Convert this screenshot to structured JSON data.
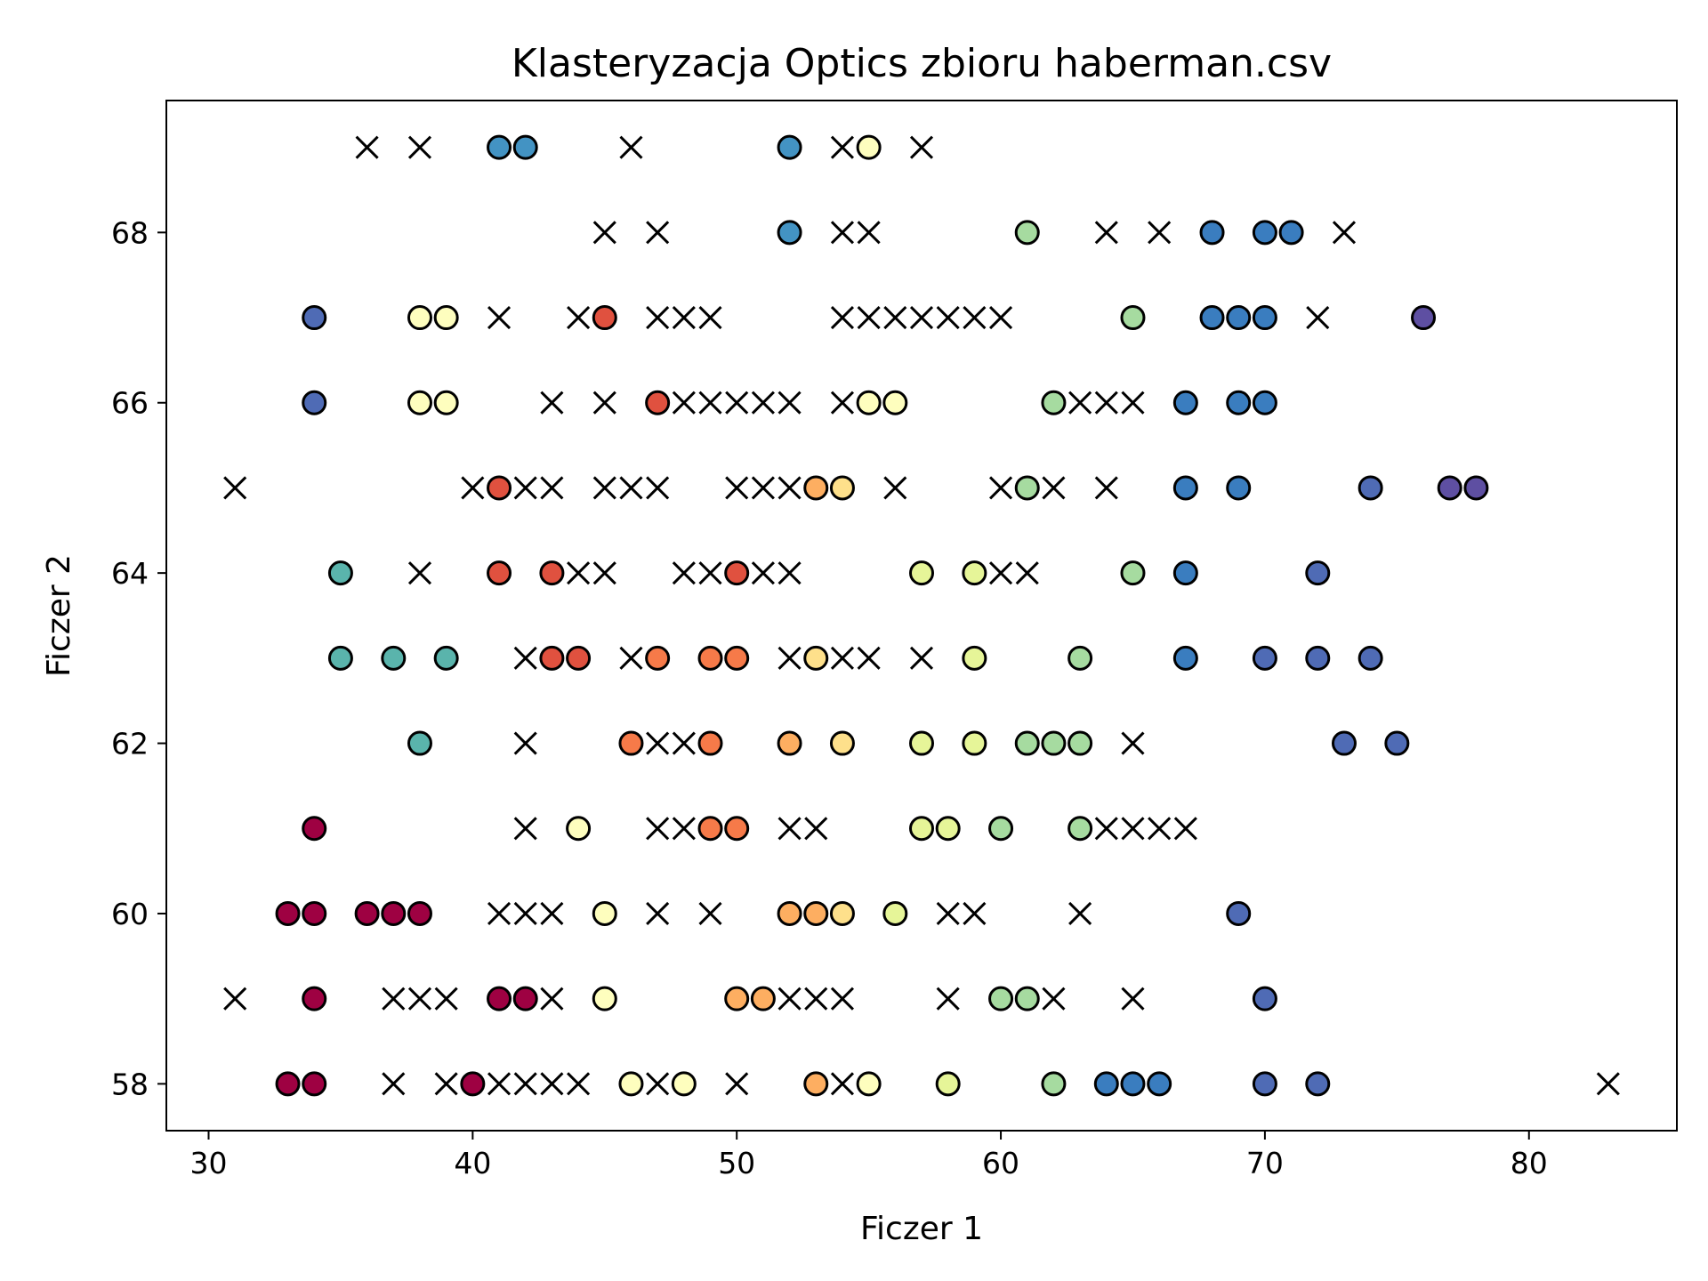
{
  "chart_data": {
    "type": "scatter",
    "title": "Klasteryzacja Optics zbioru haberman.csv",
    "xlabel": "Ficzer 1",
    "ylabel": "Ficzer 2",
    "xlim": [
      28.4,
      85.6
    ],
    "ylim": [
      57.45,
      69.55
    ],
    "xticks": [
      "30",
      "40",
      "50",
      "60",
      "70",
      "80"
    ],
    "yticks": [
      "58",
      "60",
      "62",
      "64",
      "66",
      "68"
    ],
    "grid": false,
    "legend": "none",
    "noise_marker": "x",
    "noise": [
      [
        36,
        69
      ],
      [
        38,
        69
      ],
      [
        46,
        69
      ],
      [
        54,
        69
      ],
      [
        57,
        69
      ],
      [
        45,
        68
      ],
      [
        47,
        68
      ],
      [
        54,
        68
      ],
      [
        55,
        68
      ],
      [
        64,
        68
      ],
      [
        66,
        68
      ],
      [
        73,
        68
      ],
      [
        41,
        67
      ],
      [
        44,
        67
      ],
      [
        47,
        67
      ],
      [
        48,
        67
      ],
      [
        49,
        67
      ],
      [
        54,
        67
      ],
      [
        55,
        67
      ],
      [
        56,
        67
      ],
      [
        57,
        67
      ],
      [
        58,
        67
      ],
      [
        59,
        67
      ],
      [
        60,
        67
      ],
      [
        72,
        67
      ],
      [
        43,
        66
      ],
      [
        45,
        66
      ],
      [
        48,
        66
      ],
      [
        49,
        66
      ],
      [
        50,
        66
      ],
      [
        51,
        66
      ],
      [
        52,
        66
      ],
      [
        54,
        66
      ],
      [
        63,
        66
      ],
      [
        64,
        66
      ],
      [
        65,
        66
      ],
      [
        31,
        65
      ],
      [
        40,
        65
      ],
      [
        42,
        65
      ],
      [
        43,
        65
      ],
      [
        45,
        65
      ],
      [
        46,
        65
      ],
      [
        47,
        65
      ],
      [
        50,
        65
      ],
      [
        51,
        65
      ],
      [
        52,
        65
      ],
      [
        56,
        65
      ],
      [
        60,
        65
      ],
      [
        62,
        65
      ],
      [
        64,
        65
      ],
      [
        38,
        64
      ],
      [
        44,
        64
      ],
      [
        45,
        64
      ],
      [
        48,
        64
      ],
      [
        49,
        64
      ],
      [
        51,
        64
      ],
      [
        52,
        64
      ],
      [
        60,
        64
      ],
      [
        61,
        64
      ],
      [
        42,
        63
      ],
      [
        46,
        63
      ],
      [
        52,
        63
      ],
      [
        54,
        63
      ],
      [
        55,
        63
      ],
      [
        57,
        63
      ],
      [
        42,
        62
      ],
      [
        47,
        62
      ],
      [
        48,
        62
      ],
      [
        65,
        62
      ],
      [
        42,
        61
      ],
      [
        47,
        61
      ],
      [
        48,
        61
      ],
      [
        52,
        61
      ],
      [
        53,
        61
      ],
      [
        64,
        61
      ],
      [
        65,
        61
      ],
      [
        66,
        61
      ],
      [
        67,
        61
      ],
      [
        41,
        60
      ],
      [
        42,
        60
      ],
      [
        43,
        60
      ],
      [
        47,
        60
      ],
      [
        49,
        60
      ],
      [
        58,
        60
      ],
      [
        59,
        60
      ],
      [
        63,
        60
      ],
      [
        31,
        59
      ],
      [
        37,
        59
      ],
      [
        38,
        59
      ],
      [
        39,
        59
      ],
      [
        43,
        59
      ],
      [
        52,
        59
      ],
      [
        53,
        59
      ],
      [
        54,
        59
      ],
      [
        58,
        59
      ],
      [
        62,
        59
      ],
      [
        65,
        59
      ],
      [
        37,
        58
      ],
      [
        39,
        58
      ],
      [
        41,
        58
      ],
      [
        42,
        58
      ],
      [
        43,
        58
      ],
      [
        44,
        58
      ],
      [
        47,
        58
      ],
      [
        50,
        58
      ],
      [
        54,
        58
      ],
      [
        83,
        58
      ]
    ],
    "clusters": [
      {
        "color": "#9e0142",
        "points": [
          [
            34,
            61
          ],
          [
            33,
            60
          ],
          [
            34,
            60
          ],
          [
            36,
            60
          ],
          [
            37,
            60
          ],
          [
            38,
            60
          ],
          [
            34,
            59
          ],
          [
            41,
            59
          ],
          [
            42,
            59
          ],
          [
            33,
            58
          ],
          [
            34,
            58
          ],
          [
            40,
            58
          ]
        ]
      },
      {
        "color": "#e0513f",
        "points": [
          [
            45,
            67
          ],
          [
            47,
            66
          ],
          [
            41,
            65
          ],
          [
            41,
            64
          ],
          [
            43,
            64
          ],
          [
            50,
            64
          ],
          [
            43,
            63
          ],
          [
            44,
            63
          ]
        ]
      },
      {
        "color": "#f67a49",
        "points": [
          [
            47,
            63
          ],
          [
            49,
            63
          ],
          [
            50,
            63
          ],
          [
            46,
            62
          ],
          [
            49,
            62
          ],
          [
            49,
            61
          ],
          [
            50,
            61
          ]
        ]
      },
      {
        "color": "#fdae61",
        "points": [
          [
            53,
            65
          ],
          [
            52,
            62
          ],
          [
            52,
            60
          ],
          [
            53,
            60
          ],
          [
            50,
            59
          ],
          [
            51,
            59
          ],
          [
            53,
            58
          ]
        ]
      },
      {
        "color": "#fee08b",
        "points": [
          [
            53,
            63
          ],
          [
            54,
            60
          ],
          [
            54,
            62
          ],
          [
            54,
            65
          ]
        ]
      },
      {
        "color": "#fefebe",
        "points": [
          [
            55,
            69
          ],
          [
            38,
            67
          ],
          [
            39,
            67
          ],
          [
            38,
            66
          ],
          [
            39,
            66
          ],
          [
            55,
            66
          ],
          [
            56,
            66
          ],
          [
            44,
            61
          ],
          [
            45,
            60
          ],
          [
            45,
            59
          ],
          [
            46,
            58
          ],
          [
            48,
            58
          ],
          [
            55,
            58
          ]
        ]
      },
      {
        "color": "#e6f598",
        "points": [
          [
            57,
            64
          ],
          [
            57,
            62
          ],
          [
            57,
            61
          ],
          [
            58,
            61
          ],
          [
            59,
            64
          ],
          [
            59,
            63
          ],
          [
            59,
            62
          ],
          [
            56,
            60
          ],
          [
            58,
            58
          ]
        ]
      },
      {
        "color": "#a6dba0",
        "points": [
          [
            61,
            68
          ],
          [
            65,
            67
          ],
          [
            62,
            66
          ],
          [
            61,
            65
          ],
          [
            65,
            64
          ],
          [
            63,
            63
          ],
          [
            60,
            61
          ],
          [
            61,
            62
          ],
          [
            62,
            62
          ],
          [
            63,
            62
          ],
          [
            63,
            61
          ],
          [
            60,
            59
          ],
          [
            61,
            59
          ],
          [
            62,
            58
          ]
        ]
      },
      {
        "color": "#5ab4ac",
        "points": [
          [
            35,
            64
          ],
          [
            35,
            63
          ],
          [
            37,
            63
          ],
          [
            39,
            63
          ],
          [
            38,
            62
          ]
        ]
      },
      {
        "color": "#4393c3",
        "points": [
          [
            41,
            69
          ],
          [
            42,
            69
          ],
          [
            52,
            69
          ],
          [
            52,
            68
          ]
        ]
      },
      {
        "color": "#3a7dbf",
        "points": [
          [
            68,
            68
          ],
          [
            70,
            68
          ],
          [
            71,
            68
          ],
          [
            68,
            67
          ],
          [
            69,
            67
          ],
          [
            70,
            67
          ],
          [
            67,
            66
          ],
          [
            69,
            66
          ],
          [
            70,
            66
          ],
          [
            67,
            65
          ],
          [
            69,
            65
          ],
          [
            67,
            64
          ],
          [
            67,
            63
          ],
          [
            64,
            58
          ],
          [
            65,
            58
          ],
          [
            66,
            58
          ]
        ]
      },
      {
        "color": "#4f6bb5",
        "points": [
          [
            34,
            67
          ],
          [
            34,
            66
          ],
          [
            74,
            65
          ],
          [
            72,
            64
          ],
          [
            70,
            63
          ],
          [
            72,
            63
          ],
          [
            74,
            63
          ],
          [
            73,
            62
          ],
          [
            75,
            62
          ],
          [
            69,
            60
          ],
          [
            70,
            59
          ],
          [
            70,
            58
          ],
          [
            72,
            58
          ]
        ]
      },
      {
        "color": "#5e4fa2",
        "points": [
          [
            76,
            67
          ],
          [
            77,
            65
          ],
          [
            78,
            65
          ]
        ]
      }
    ]
  }
}
